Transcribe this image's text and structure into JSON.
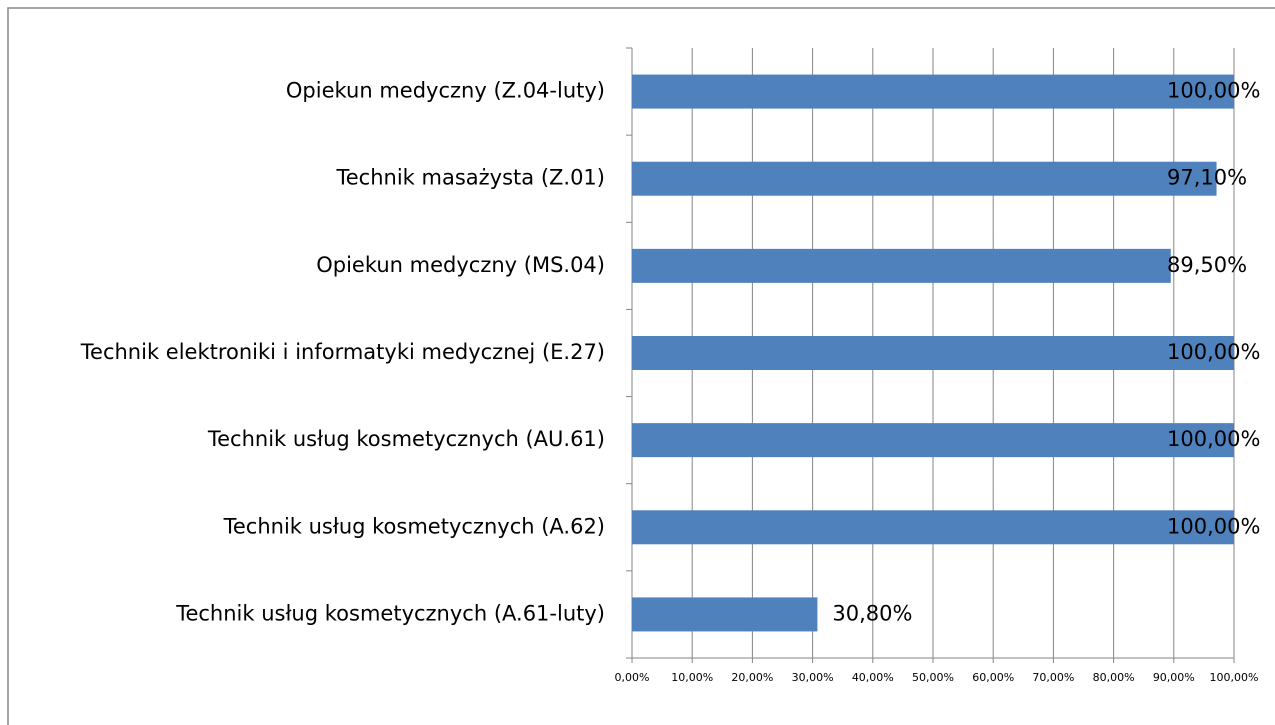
{
  "chart_data": {
    "type": "bar",
    "orientation": "horizontal",
    "categories": [
      "Opiekun medyczny (Z.04-luty)",
      "Technik masażysta (Z.01)",
      "Opiekun medyczny (MS.04)",
      "Technik elektroniki  i informatyki medycznej (E.27)",
      "Technik usług kosmetycznych (AU.61)",
      "Technik usług kosmetycznych (A.62)",
      "Technik usług kosmetycznych (A.61-luty)"
    ],
    "values": [
      100,
      97.1,
      89.5,
      100,
      100,
      100,
      30.8
    ],
    "value_labels": [
      "100,00%",
      "97,10%",
      "89,50%",
      "100,00%",
      "100,00%",
      "100,00%",
      "30,80%"
    ],
    "color": "#4f81bd",
    "xlim": [
      0,
      100
    ],
    "xticks": [
      {
        "value": 0,
        "label": "0,00%"
      },
      {
        "value": 10,
        "label": "10,00%"
      },
      {
        "value": 20,
        "label": "20,00%"
      },
      {
        "value": 30,
        "label": "30,00%"
      },
      {
        "value": 40,
        "label": "40,00%"
      },
      {
        "value": 50,
        "label": "50,00%"
      },
      {
        "value": 60,
        "label": "60,00%"
      },
      {
        "value": 70,
        "label": "70,00%"
      },
      {
        "value": 80,
        "label": "80,00%"
      },
      {
        "value": 90,
        "label": "90,00%"
      },
      {
        "value": 100,
        "label": "100,00%"
      }
    ],
    "grid": true
  }
}
